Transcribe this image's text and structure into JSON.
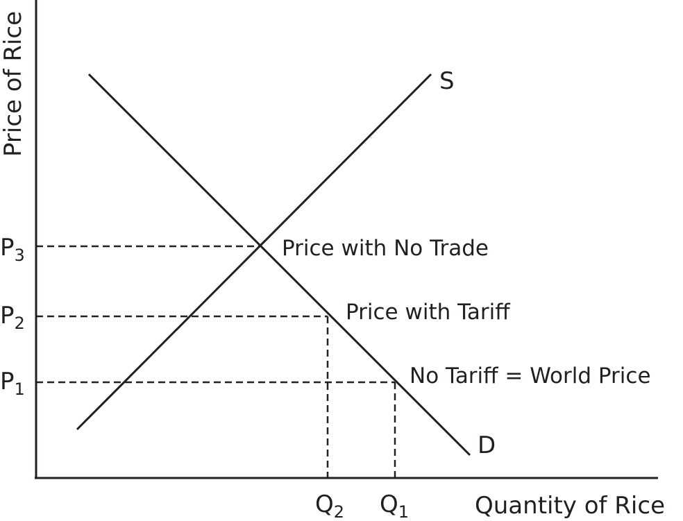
{
  "axes": {
    "y_label": "Price of Rice",
    "x_label": "Quantity of Rice"
  },
  "curves": {
    "supply_label": "S",
    "demand_label": "D"
  },
  "price_levels": [
    {
      "label": "P",
      "sub": "3",
      "annotation": "Price with No Trade"
    },
    {
      "label": "P",
      "sub": "2",
      "annotation": "Price with Tariff"
    },
    {
      "label": "P",
      "sub": "1",
      "annotation": "No Tariff = World Price"
    }
  ],
  "quantity_levels": [
    {
      "label": "Q",
      "sub": "2"
    },
    {
      "label": "Q",
      "sub": "1"
    }
  ]
}
